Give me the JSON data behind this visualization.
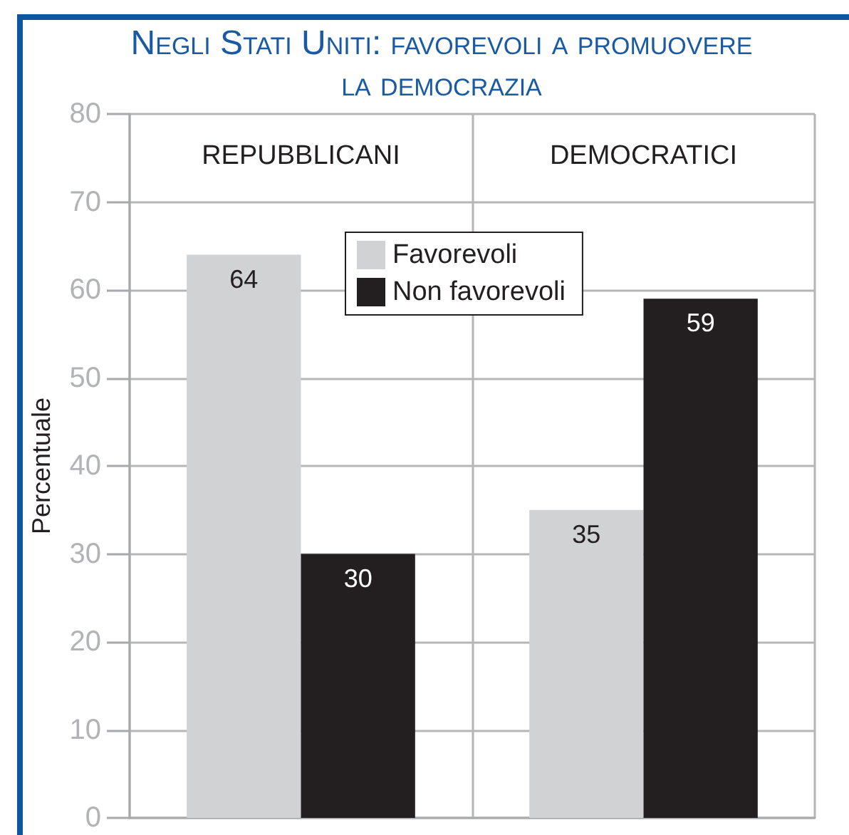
{
  "chart_data": {
    "type": "bar",
    "title": "Negli Stati Uniti: favorevoli a promuovere la democrazia",
    "ylabel": "Percentuale",
    "categories": [
      "REPUBBLICANI",
      "DEMOCRATICI"
    ],
    "series": [
      {
        "name": "Favorevoli",
        "color": "#d1d2d4",
        "values": [
          64,
          35
        ]
      },
      {
        "name": "Non favorevoli",
        "color": "#231f20",
        "values": [
          30,
          59
        ]
      }
    ],
    "ylim": [
      0,
      80
    ],
    "yticks": [
      0,
      10,
      20,
      30,
      40,
      50,
      60,
      70,
      80
    ],
    "grid": true,
    "legend": "top",
    "data_labels": true
  }
}
